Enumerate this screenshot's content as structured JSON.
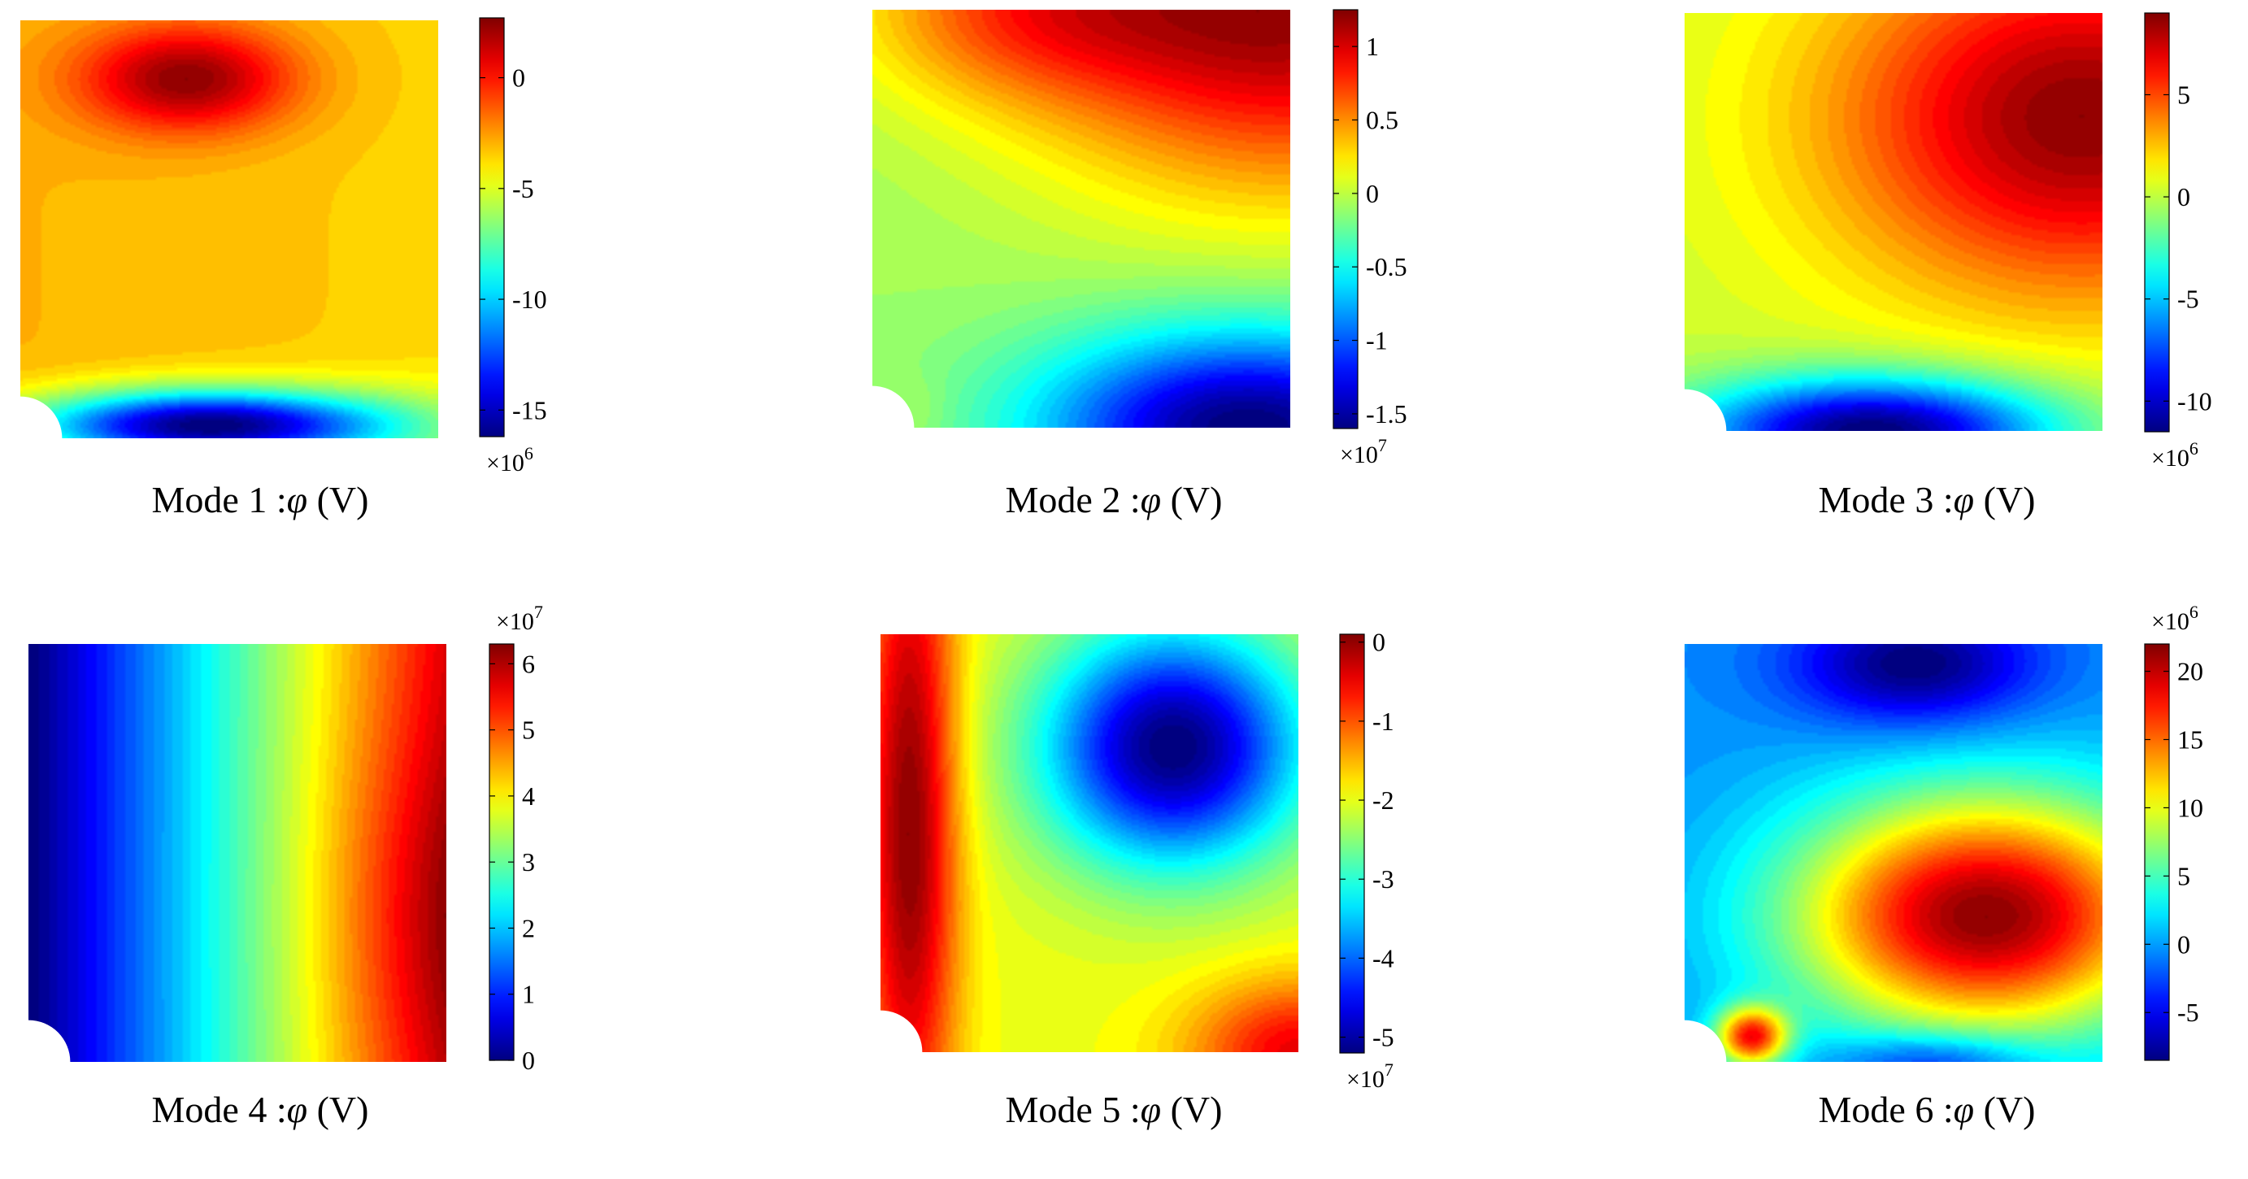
{
  "chart_data": [
    {
      "type": "heatmap",
      "title": "Mode 1",
      "caption": {
        "mode": "Mode 1",
        "sep": ":",
        "symbol": "φ",
        "unit": "(V)"
      },
      "colormap": "jet",
      "colorbar": {
        "min": -16.2,
        "max": 2.7,
        "ticks": [
          -15,
          -10,
          -5,
          0
        ],
        "tick_labels": [
          "-15",
          "-10",
          "-5",
          "0"
        ],
        "multiplier": "×10⁶",
        "multiplier_position": "bottom"
      },
      "field_shape": "square plate with quarter-circle hole at bottom-left corner",
      "field": {
        "domain": {
          "x": [
            0,
            1
          ],
          "y": [
            0,
            1
          ]
        },
        "hole": {
          "cx": 0,
          "cy": 0,
          "r": 0.1
        },
        "sources": [
          {
            "x": 0.4,
            "y": 0.86,
            "sx": 0.18,
            "sy": 0.09,
            "a": 0.5
          },
          {
            "x": 0.45,
            "y": 0.03,
            "sx": 0.3,
            "sy": 0.06,
            "a": -1.15
          },
          {
            "x": 0.95,
            "y": 0.0,
            "sx": 0.18,
            "sy": 0.1,
            "a": -0.1
          }
        ],
        "gradient": {
          "base": 0.0,
          "gx": -0.05,
          "gy": 0.0
        }
      }
    },
    {
      "type": "heatmap",
      "title": "Mode 2",
      "caption": {
        "mode": "Mode 2",
        "sep": ":",
        "symbol": "φ",
        "unit": "(V)"
      },
      "colormap": "jet",
      "colorbar": {
        "min": -1.6,
        "max": 1.25,
        "ticks": [
          -1.5,
          -1,
          -0.5,
          0,
          0.5,
          1
        ],
        "tick_labels": [
          "-1.5",
          "-1",
          "-0.5",
          "0",
          "0.5",
          "1"
        ],
        "multiplier": "×10⁷",
        "multiplier_position": "bottom"
      },
      "field_shape": "square plate with quarter-circle hole at bottom-left corner",
      "field": {
        "domain": {
          "x": [
            0,
            1
          ],
          "y": [
            0,
            1
          ]
        },
        "hole": {
          "cx": 0,
          "cy": 0,
          "r": 0.1
        },
        "sources": [
          {
            "x": 1.0,
            "y": 1.0,
            "sx": 0.45,
            "sy": 0.3,
            "a": 1.3
          },
          {
            "x": 0.35,
            "y": 1.0,
            "sx": 0.28,
            "sy": 0.15,
            "a": 0.55
          },
          {
            "x": 0.9,
            "y": 0.0,
            "sx": 0.35,
            "sy": 0.16,
            "a": -1.6
          },
          {
            "x": 0.1,
            "y": 0.04,
            "sx": 0.06,
            "sy": 0.06,
            "a": 0.1
          }
        ],
        "gradient": {
          "base": -0.12,
          "gx": 0.0,
          "gy": 0.0
        }
      }
    },
    {
      "type": "heatmap",
      "title": "Mode 3",
      "caption": {
        "mode": "Mode 3",
        "sep": ":",
        "symbol": "φ",
        "unit": "(V)"
      },
      "colormap": "jet",
      "colorbar": {
        "min": -11.5,
        "max": 9.0,
        "ticks": [
          -10,
          -5,
          0,
          5
        ],
        "tick_labels": [
          "-10",
          "-5",
          "0",
          "5"
        ],
        "multiplier": "×10⁶",
        "multiplier_position": "bottom"
      },
      "field_shape": "square plate with quarter-circle hole at bottom-left corner",
      "field": {
        "domain": {
          "x": [
            0,
            1
          ],
          "y": [
            0,
            1
          ]
        },
        "hole": {
          "cx": 0,
          "cy": 0,
          "r": 0.1
        },
        "sources": [
          {
            "x": 0.95,
            "y": 0.75,
            "sx": 0.42,
            "sy": 0.3,
            "a": 9.5
          },
          {
            "x": 0.45,
            "y": 0.0,
            "sx": 0.3,
            "sy": 0.09,
            "a": -13.5
          }
        ],
        "gradient": {
          "base": -1.5,
          "gx": 0.0,
          "gy": 0.0
        }
      }
    },
    {
      "type": "heatmap",
      "title": "Mode 4",
      "caption": {
        "mode": "Mode 4",
        "sep": ":",
        "symbol": "φ",
        "unit": "(V)"
      },
      "colormap": "jet",
      "colorbar": {
        "min": 0,
        "max": 6.3,
        "ticks": [
          0,
          1,
          2,
          3,
          4,
          5,
          6
        ],
        "tick_labels": [
          "0",
          "1",
          "2",
          "3",
          "4",
          "5",
          "6"
        ],
        "multiplier": "×10⁷",
        "multiplier_position": "top"
      },
      "field_shape": "square plate with quarter-circle hole at bottom-left corner",
      "field": {
        "domain": {
          "x": [
            0,
            1
          ],
          "y": [
            0,
            1
          ]
        },
        "hole": {
          "cx": 0,
          "cy": 0,
          "r": 0.1
        },
        "sources": [
          {
            "x": 1.0,
            "y": 0.35,
            "sx": 0.2,
            "sy": 0.3,
            "a": 0.6
          }
        ],
        "gradient": {
          "base": -0.3,
          "gx": 6.0,
          "gy": 0.0
        }
      }
    },
    {
      "type": "heatmap",
      "title": "Mode 5",
      "caption": {
        "mode": "Mode 5",
        "sep": ":",
        "symbol": "φ",
        "unit": "(V)"
      },
      "colormap": "jet",
      "colorbar": {
        "min": -5.2,
        "max": 0.1,
        "ticks": [
          -5,
          -4,
          -3,
          -2,
          -1,
          0
        ],
        "tick_labels": [
          "-5",
          "-4",
          "-3",
          "-2",
          "-1",
          "0"
        ],
        "multiplier": "×10⁷",
        "multiplier_position": "bottom"
      },
      "field_shape": "square plate with quarter-circle hole at bottom-left corner",
      "field": {
        "domain": {
          "x": [
            0,
            1
          ],
          "y": [
            0,
            1
          ]
        },
        "hole": {
          "cx": 0,
          "cy": 0,
          "r": 0.1
        },
        "sources": [
          {
            "x": 0.07,
            "y": 0.55,
            "sx": 0.08,
            "sy": 0.6,
            "a": 2.7
          },
          {
            "x": 0.7,
            "y": 0.73,
            "sx": 0.22,
            "sy": 0.2,
            "a": -4.3
          },
          {
            "x": 1.0,
            "y": 0.0,
            "sx": 0.18,
            "sy": 0.12,
            "a": 2.0
          }
        ],
        "gradient": {
          "base": -2.4,
          "gx": 0.0,
          "gy": 0.0
        }
      }
    },
    {
      "type": "heatmap",
      "title": "Mode 6",
      "caption": {
        "mode": "Mode 6",
        "sep": ":",
        "symbol": "φ",
        "unit": "(V)"
      },
      "colormap": "jet",
      "colorbar": {
        "min": -8.5,
        "max": 22.0,
        "ticks": [
          -5,
          0,
          5,
          10,
          15,
          20
        ],
        "tick_labels": [
          "-5",
          "0",
          "5",
          "10",
          "15",
          "20"
        ],
        "multiplier": "×10⁶",
        "multiplier_position": "top"
      },
      "field_shape": "square plate with quarter-circle hole at bottom-left corner",
      "field": {
        "domain": {
          "x": [
            0,
            1
          ],
          "y": [
            0,
            1
          ]
        },
        "hole": {
          "cx": 0,
          "cy": 0,
          "r": 0.1
        },
        "sources": [
          {
            "x": 0.72,
            "y": 0.35,
            "sx": 0.32,
            "sy": 0.2,
            "a": 25.5
          },
          {
            "x": 0.55,
            "y": 0.95,
            "sx": 0.2,
            "sy": 0.1,
            "a": -10.0
          },
          {
            "x": 0.6,
            "y": 0.0,
            "sx": 0.16,
            "sy": 0.05,
            "a": -7.0
          },
          {
            "x": 0.16,
            "y": 0.06,
            "sx": 0.06,
            "sy": 0.05,
            "a": 20.0
          }
        ],
        "gradient": {
          "base": 0.5,
          "gx": 0.0,
          "gy": 0.0
        }
      }
    }
  ]
}
